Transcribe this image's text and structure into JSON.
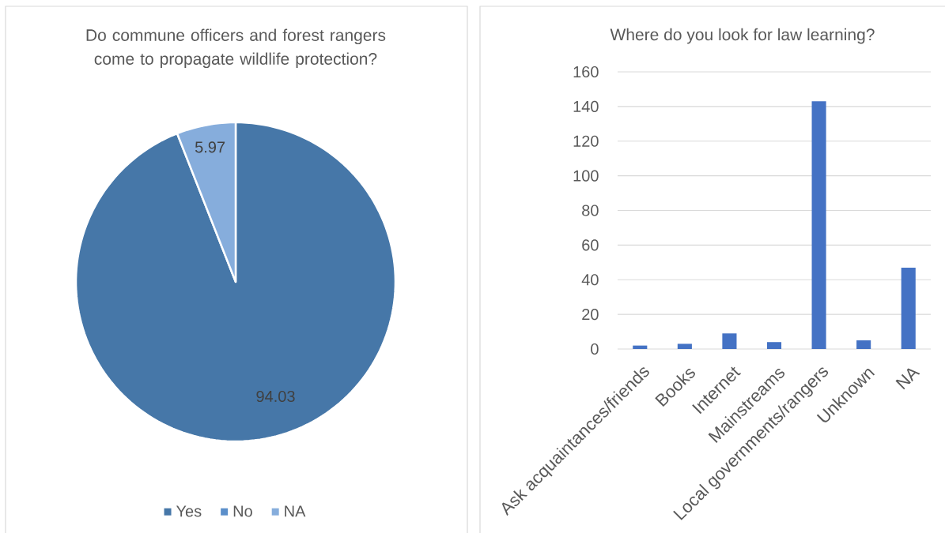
{
  "chart_data": [
    {
      "type": "pie",
      "title": "Do commune officers and forest rangers come to propagate wildlife protection?",
      "categories": [
        "Yes",
        "No",
        "NA"
      ],
      "values": [
        94.03,
        0,
        5.97
      ],
      "colors": [
        "#4677a8",
        "#5b8fca",
        "#86addc"
      ],
      "value_labels": [
        "94.03",
        null,
        "5.97"
      ],
      "legend": "bottom"
    },
    {
      "type": "bar",
      "title": "Where do you look for law learning?",
      "categories": [
        "Ask acquaintances/friends",
        "Books",
        "Internet",
        "Mainstreams",
        "Local governments/rangers",
        "Unknown",
        "NA"
      ],
      "values": [
        2,
        3,
        9,
        4,
        143,
        5,
        47
      ],
      "color": "#4472c4",
      "ylim": [
        0,
        160
      ],
      "yticks": [
        0,
        20,
        40,
        60,
        80,
        100,
        120,
        140,
        160
      ],
      "grid": "y"
    }
  ]
}
